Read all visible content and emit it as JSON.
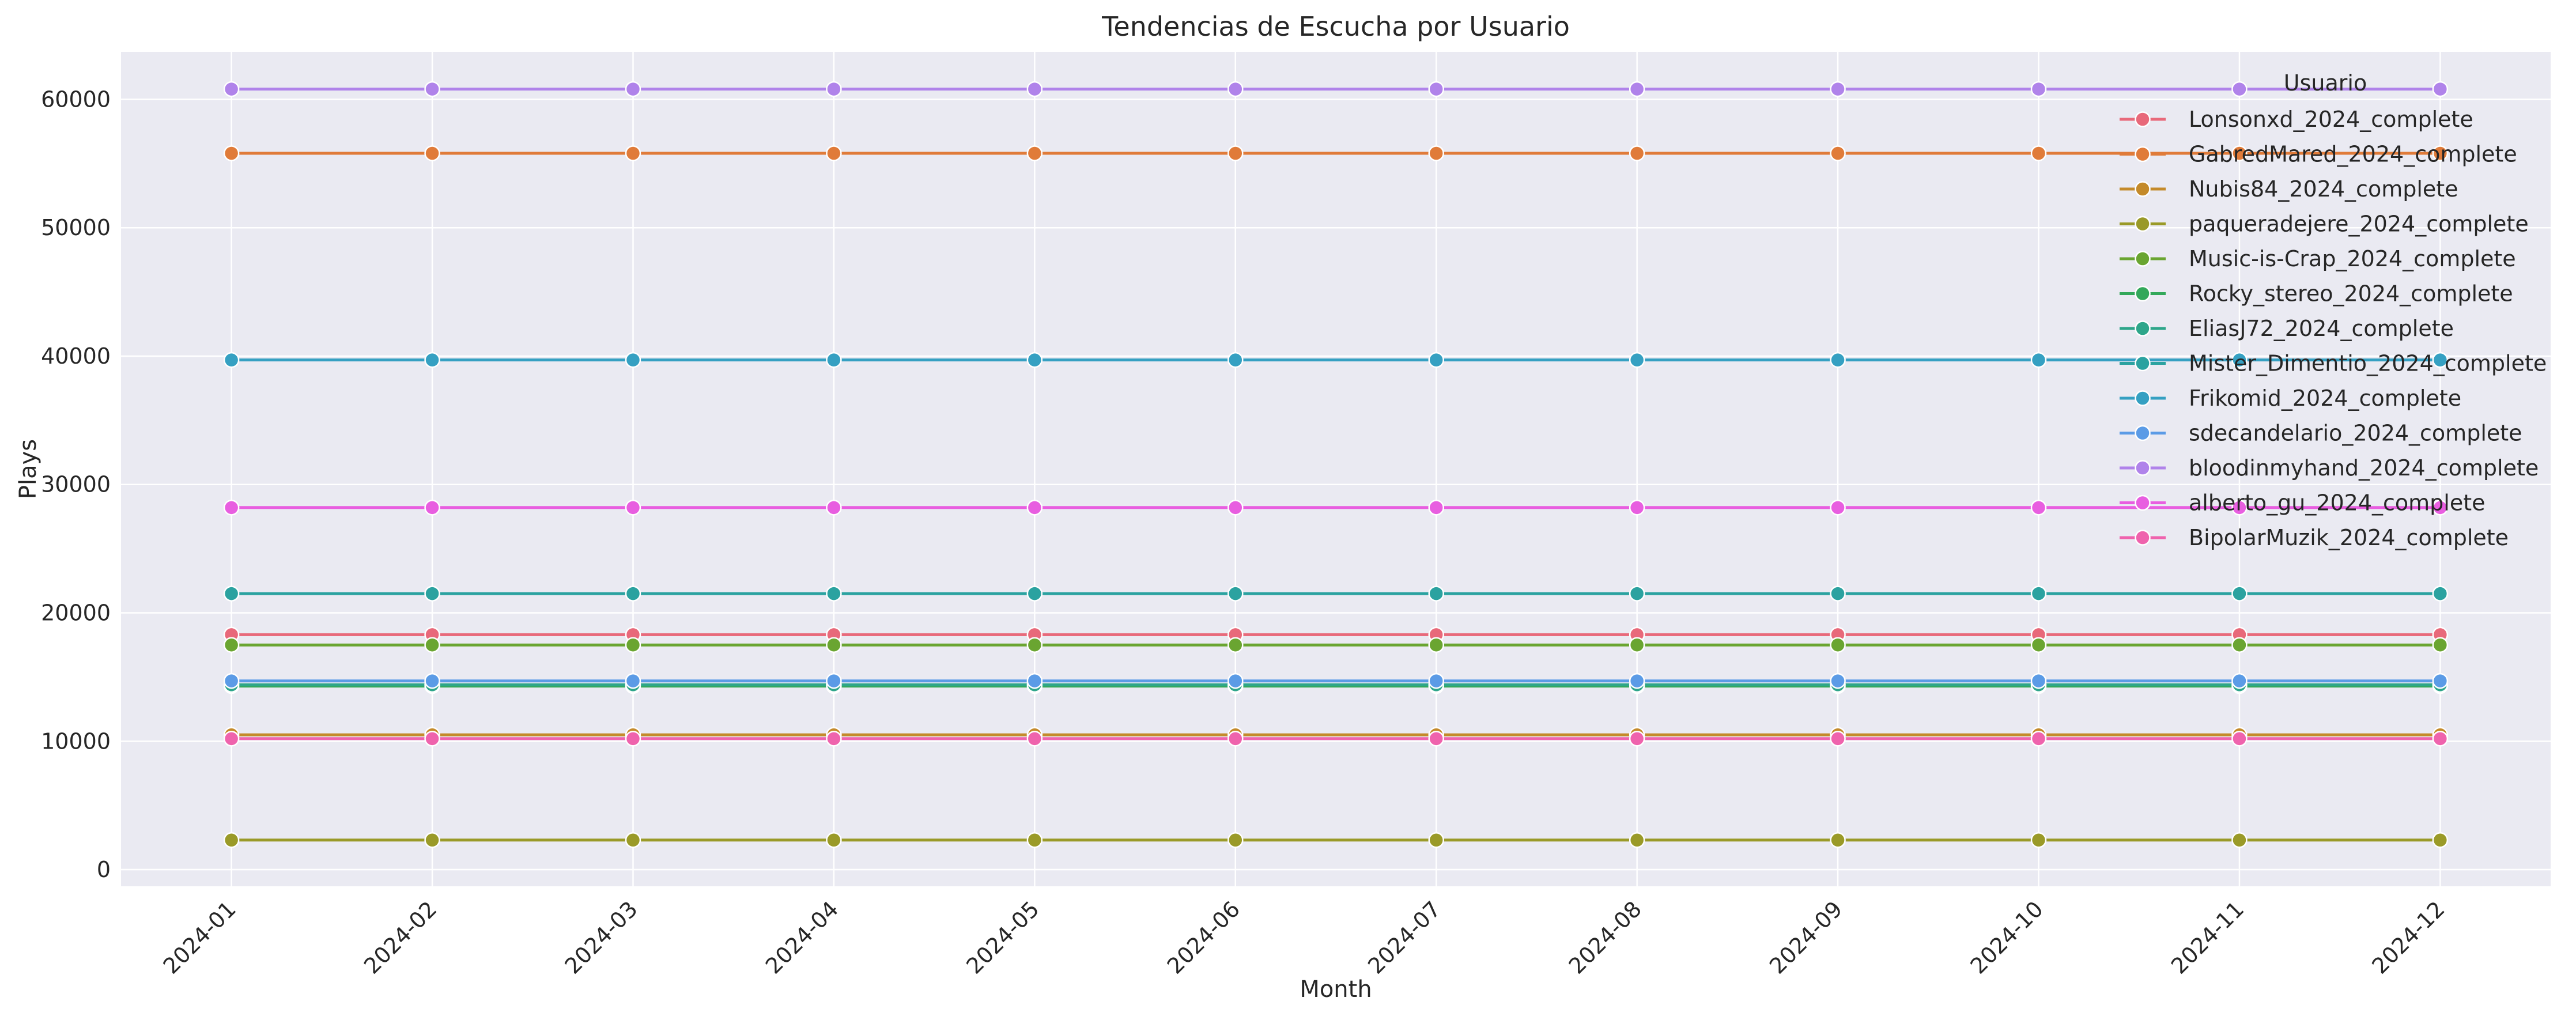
{
  "chart_data": {
    "type": "line",
    "title": "Tendencias de Escucha por Usuario",
    "xlabel": "Month",
    "ylabel": "Plays",
    "ylim": [
      -1300,
      63700
    ],
    "yticks": [
      0,
      10000,
      20000,
      30000,
      40000,
      50000,
      60000
    ],
    "grid": true,
    "legend_title": "Usuario",
    "legend_position": "top-right",
    "categories": [
      "2024-01",
      "2024-02",
      "2024-03",
      "2024-04",
      "2024-05",
      "2024-06",
      "2024-07",
      "2024-08",
      "2024-09",
      "2024-10",
      "2024-11",
      "2024-12"
    ],
    "series": [
      {
        "name": "Lonsonxd_2024_complete",
        "color": "#e8697a",
        "values": [
          18300,
          18300,
          18300,
          18300,
          18300,
          18300,
          18300,
          18300,
          18300,
          18300,
          18300,
          18300
        ]
      },
      {
        "name": "GabredMared_2024_complete",
        "color": "#e07b39",
        "values": [
          55800,
          55800,
          55800,
          55800,
          55800,
          55800,
          55800,
          55800,
          55800,
          55800,
          55800,
          55800
        ]
      },
      {
        "name": "Nubis84_2024_complete",
        "color": "#c48a2a",
        "values": [
          10500,
          10500,
          10500,
          10500,
          10500,
          10500,
          10500,
          10500,
          10500,
          10500,
          10500,
          10500
        ]
      },
      {
        "name": "paqueradejere_2024_complete",
        "color": "#9a9a28",
        "values": [
          2300,
          2300,
          2300,
          2300,
          2300,
          2300,
          2300,
          2300,
          2300,
          2300,
          2300,
          2300
        ]
      },
      {
        "name": "Music-is-Crap_2024_complete",
        "color": "#6aa531",
        "values": [
          17500,
          17500,
          17500,
          17500,
          17500,
          17500,
          17500,
          17500,
          17500,
          17500,
          17500,
          17500
        ]
      },
      {
        "name": "Rocky_stereo_2024_complete",
        "color": "#33a85a",
        "values": [
          14300,
          14300,
          14300,
          14300,
          14300,
          14300,
          14300,
          14300,
          14300,
          14300,
          14300,
          14300
        ]
      },
      {
        "name": "EliasJ72_2024_complete",
        "color": "#2ea68a",
        "values": [
          14400,
          14400,
          14400,
          14400,
          14400,
          14400,
          14400,
          14400,
          14400,
          14400,
          14400,
          14400
        ]
      },
      {
        "name": "Mister_Dimentio_2024_complete",
        "color": "#2ba2a0",
        "values": [
          21500,
          21500,
          21500,
          21500,
          21500,
          21500,
          21500,
          21500,
          21500,
          21500,
          21500,
          21500
        ]
      },
      {
        "name": "Frikomid_2024_complete",
        "color": "#35a0c2",
        "values": [
          39700,
          39700,
          39700,
          39700,
          39700,
          39700,
          39700,
          39700,
          39700,
          39700,
          39700,
          39700
        ]
      },
      {
        "name": "sdecandelario_2024_complete",
        "color": "#5b9be6",
        "values": [
          14700,
          14700,
          14700,
          14700,
          14700,
          14700,
          14700,
          14700,
          14700,
          14700,
          14700,
          14700
        ]
      },
      {
        "name": "bloodinmyhand_2024_complete",
        "color": "#b083ea",
        "values": [
          60800,
          60800,
          60800,
          60800,
          60800,
          60800,
          60800,
          60800,
          60800,
          60800,
          60800,
          60800
        ]
      },
      {
        "name": "alberto_gu_2024_complete",
        "color": "#e85ee0",
        "values": [
          28200,
          28200,
          28200,
          28200,
          28200,
          28200,
          28200,
          28200,
          28200,
          28200,
          28200,
          28200
        ]
      },
      {
        "name": "BipolarMuzik_2024_complete",
        "color": "#ef63ad",
        "values": [
          10200,
          10200,
          10200,
          10200,
          10200,
          10200,
          10200,
          10200,
          10200,
          10200,
          10200,
          10200
        ]
      }
    ]
  }
}
